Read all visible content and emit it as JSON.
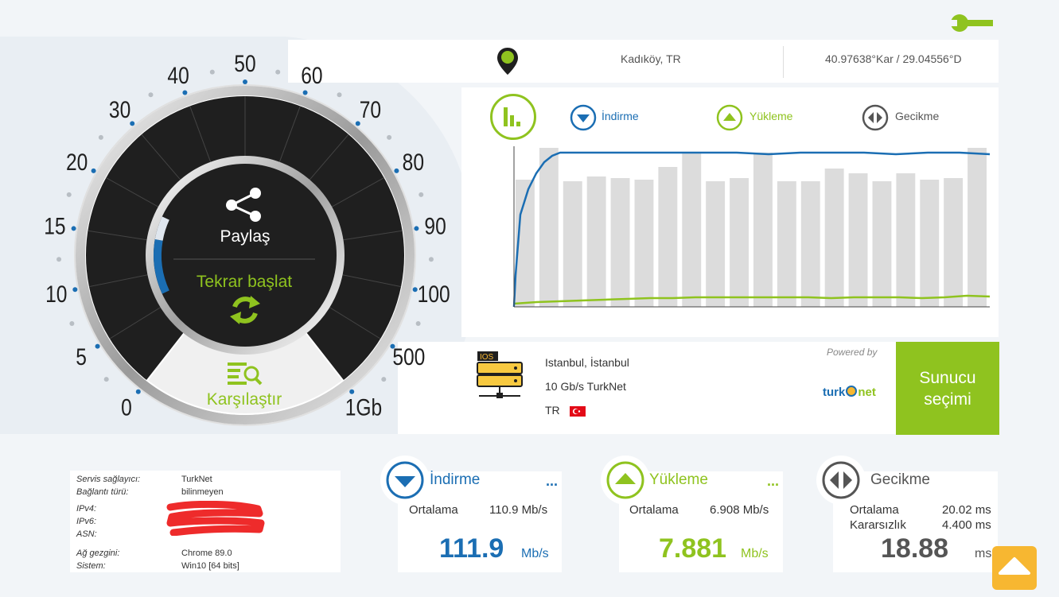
{
  "location": {
    "city": "Kadıköy, TR",
    "coords": "40.97638°Kar / 29.04556°D"
  },
  "gauge": {
    "scale": [
      "0",
      "5",
      "10",
      "15",
      "20",
      "30",
      "40",
      "50",
      "60",
      "70",
      "80",
      "90",
      "100",
      "500",
      "1Gb"
    ],
    "share_label": "Paylaş",
    "restart_label": "Tekrar başlat",
    "compare_label": "Karşılaştır"
  },
  "legend": {
    "download": "İndirme",
    "upload": "Yükleme",
    "latency": "Gecikme"
  },
  "chart_data": {
    "type": "bar",
    "bars": [
      0.8,
      1.0,
      0.79,
      0.82,
      0.81,
      0.8,
      0.88,
      0.97,
      0.79,
      0.81,
      0.97,
      0.79,
      0.79,
      0.87,
      0.84,
      0.79,
      0.84,
      0.8,
      0.81,
      1.0
    ],
    "download_line": [
      0,
      0.2,
      0.58,
      0.74,
      0.84,
      0.91,
      0.95,
      0.97,
      0.97,
      0.97,
      0.97,
      0.97,
      0.97,
      0.97,
      0.97,
      0.96,
      0.97,
      0.97,
      0.97,
      0.96,
      0.97,
      0.97,
      0.96
    ],
    "upload_line": [
      0.02,
      0.03,
      0.035,
      0.04,
      0.045,
      0.05,
      0.055,
      0.055,
      0.06,
      0.06,
      0.06,
      0.06,
      0.06,
      0.06,
      0.055,
      0.06,
      0.06,
      0.06,
      0.055,
      0.06,
      0.07,
      0.065
    ],
    "colors": {
      "bars": "#dcdcdc",
      "download": "#1b6eb3",
      "upload": "#8fc31f"
    }
  },
  "server": {
    "city": "Istanbul, İstanbul",
    "provider": "10 Gb/s TurkNet",
    "country": "TR",
    "badge": "IOS",
    "powered_by": "Powered by",
    "select_label": "Sunucu seçimi",
    "logo_text": {
      "part1": "turk",
      "part2": "net"
    }
  },
  "info": {
    "rows": [
      {
        "label": "Servis sağlayıcı:",
        "value": "TurkNet"
      },
      {
        "label": "Bağlantı türü:",
        "value": "bilinmeyen"
      },
      {
        "label": "IPv4:",
        "value": ""
      },
      {
        "label": "IPv6:",
        "value": ""
      },
      {
        "label": "ASN:",
        "value": ""
      },
      {
        "label": "Ağ gezgini:",
        "value": "Chrome 89.0"
      },
      {
        "label": "Sistem:",
        "value": "Win10 [64 bits]"
      }
    ]
  },
  "cards": {
    "download": {
      "title": "İndirme",
      "avg_label": "Ortalama",
      "avg_value": "110.9 Mb/s",
      "value": "111.9",
      "unit": "Mb/s",
      "more": "...",
      "color": "#1b6eb3"
    },
    "upload": {
      "title": "Yükleme",
      "avg_label": "Ortalama",
      "avg_value": "6.908 Mb/s",
      "value": "7.881",
      "unit": "Mb/s",
      "more": "...",
      "color": "#8fc31f"
    },
    "latency": {
      "title": "Gecikme",
      "avg_label": "Ortalama",
      "avg_value": "20.02 ms",
      "jitter_label": "Kararsızlık",
      "jitter_value": "4.400 ms",
      "value": "18.88",
      "unit": "ms"
    }
  },
  "colors": {
    "green": "#8fc31f",
    "blue": "#1b6eb3",
    "orange": "#f7b731",
    "dark": "#1f1f1f"
  }
}
